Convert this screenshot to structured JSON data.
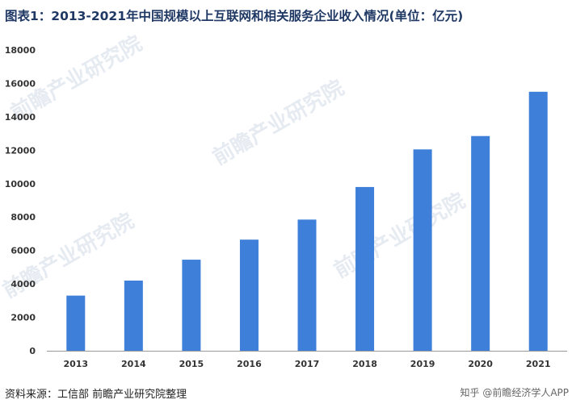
{
  "title": "图表1：2013-2021年中国规模以上互联网和相关服务企业收入情况(单位：亿元)",
  "source": "资料来源：工信部 前瞻产业研究院整理",
  "credit": "知乎 @前瞻经济学人APP",
  "watermark": "前瞻产业研究院",
  "colors": {
    "bar": "#3d7fd9",
    "title": "#1f3864",
    "axis": "#999999"
  },
  "chart_data": {
    "type": "bar",
    "title": "图表1：2013-2021年中国规模以上互联网和相关服务企业收入情况(单位：亿元)",
    "xlabel": "",
    "ylabel": "",
    "categories": [
      "2013",
      "2014",
      "2015",
      "2016",
      "2017",
      "2018",
      "2019",
      "2020",
      "2021"
    ],
    "values": [
      3300,
      4200,
      5450,
      6650,
      7850,
      9800,
      12050,
      12850,
      15500
    ],
    "ylim": [
      0,
      18000
    ],
    "yticks": [
      "0",
      "2000",
      "4000",
      "6000",
      "8000",
      "10000",
      "12000",
      "14000",
      "16000",
      "18000"
    ],
    "grid": false,
    "legend": "none"
  }
}
